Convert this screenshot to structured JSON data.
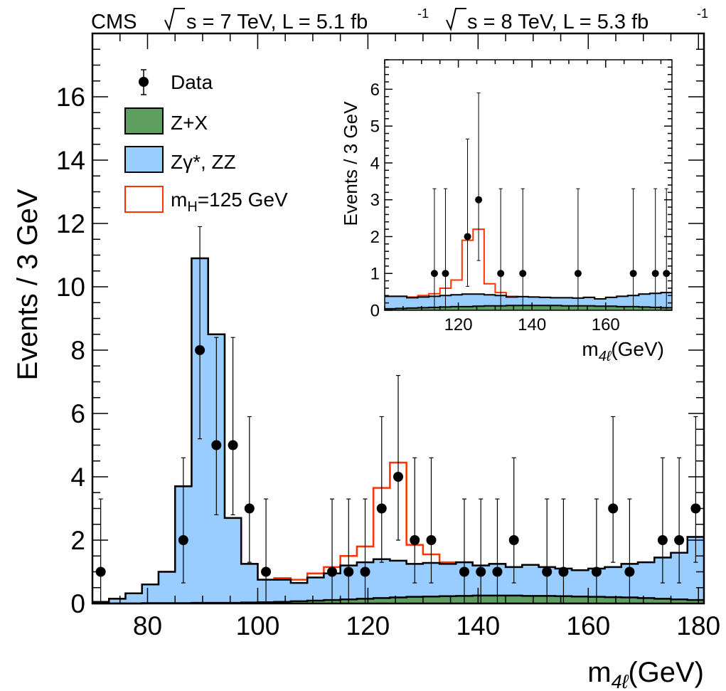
{
  "header": {
    "experiment": "CMS",
    "lumi_7": "s = 7 TeV, L = 5.1 fb",
    "lumi_8": "s = 8 TeV, L = 5.3 fb",
    "sup": "-1"
  },
  "legend": {
    "data": "Data",
    "zx": "Z+X",
    "zz_main": "Zγ*, ZZ",
    "higgs_pre": "m",
    "higgs_sub": "H",
    "higgs_post": "=125 GeV"
  },
  "chart_data": [
    {
      "type": "histogram",
      "xlabel_m": "m",
      "xlabel_sub": "4ℓ",
      "xlabel_unit": "(GeV)",
      "ylabel": "Events / 3 GeV",
      "xlim": [
        70,
        181
      ],
      "ylim": [
        0,
        18
      ],
      "xticks": [
        80,
        100,
        120,
        140,
        160,
        180
      ],
      "yticks": [
        0,
        2,
        4,
        6,
        8,
        10,
        12,
        14,
        16
      ],
      "colors": {
        "zx": "#5e9e5e",
        "zz": "#99ccff",
        "higgs": "#ff3300",
        "data": "#000000"
      },
      "bin_edges": [
        70,
        73,
        76,
        79,
        82,
        85,
        88,
        91,
        94,
        97,
        100,
        103,
        106,
        109,
        112,
        115,
        118,
        121,
        124,
        127,
        130,
        133,
        136,
        139,
        142,
        145,
        148,
        151,
        154,
        157,
        160,
        163,
        166,
        169,
        172,
        175,
        178,
        181
      ],
      "series": [
        {
          "name": "Z+X",
          "values": [
            0.0,
            0.0,
            0.0,
            0.01,
            0.01,
            0.01,
            0.02,
            0.02,
            0.02,
            0.03,
            0.04,
            0.05,
            0.07,
            0.09,
            0.11,
            0.13,
            0.15,
            0.17,
            0.19,
            0.21,
            0.22,
            0.23,
            0.24,
            0.25,
            0.25,
            0.25,
            0.24,
            0.24,
            0.23,
            0.22,
            0.21,
            0.2,
            0.19,
            0.17,
            0.15,
            0.13,
            0.11
          ]
        },
        {
          "name": "Zγ*, ZZ",
          "values": [
            0.05,
            0.15,
            0.32,
            0.6,
            1.0,
            3.7,
            10.9,
            8.5,
            2.7,
            1.25,
            0.75,
            0.75,
            0.65,
            0.82,
            0.95,
            1.2,
            1.3,
            1.4,
            1.35,
            1.25,
            1.28,
            1.25,
            1.3,
            1.2,
            1.25,
            1.15,
            1.22,
            1.15,
            1.1,
            1.05,
            1.1,
            1.15,
            1.25,
            1.3,
            1.45,
            1.6,
            2.1
          ]
        },
        {
          "name": "m_H=125 GeV",
          "values": [
            0.05,
            0.15,
            0.32,
            0.6,
            1.0,
            3.7,
            10.9,
            8.5,
            2.7,
            1.25,
            0.75,
            0.8,
            0.75,
            0.95,
            1.15,
            1.5,
            1.8,
            3.65,
            4.45,
            1.85,
            1.55,
            1.3,
            1.3,
            1.2,
            1.25,
            1.15,
            1.22,
            1.15,
            1.1,
            1.05,
            1.1,
            1.15,
            1.25,
            1.3,
            1.45,
            1.6,
            2.1
          ]
        }
      ],
      "data_points": [
        {
          "x": 71.5,
          "y": 1
        },
        {
          "x": 86.5,
          "y": 2
        },
        {
          "x": 89.5,
          "y": 8
        },
        {
          "x": 92.5,
          "y": 5
        },
        {
          "x": 95.5,
          "y": 5
        },
        {
          "x": 98.5,
          "y": 3
        },
        {
          "x": 101.5,
          "y": 1
        },
        {
          "x": 113.5,
          "y": 1
        },
        {
          "x": 116.5,
          "y": 1
        },
        {
          "x": 119.5,
          "y": 1
        },
        {
          "x": 122.5,
          "y": 3
        },
        {
          "x": 125.5,
          "y": 4
        },
        {
          "x": 128.5,
          "y": 2
        },
        {
          "x": 131.5,
          "y": 2
        },
        {
          "x": 137.5,
          "y": 1
        },
        {
          "x": 140.5,
          "y": 1
        },
        {
          "x": 143.5,
          "y": 1
        },
        {
          "x": 146.5,
          "y": 2
        },
        {
          "x": 152.5,
          "y": 1
        },
        {
          "x": 155.5,
          "y": 1
        },
        {
          "x": 161.5,
          "y": 1
        },
        {
          "x": 164.5,
          "y": 3
        },
        {
          "x": 167.5,
          "y": 1
        },
        {
          "x": 173.5,
          "y": 2
        },
        {
          "x": 176.5,
          "y": 2
        },
        {
          "x": 179.5,
          "y": 3
        }
      ],
      "error_bars": [
        [
          0,
          3.3
        ],
        [
          0.65,
          4.6
        ],
        [
          5.2,
          11.9
        ],
        [
          2.8,
          8.4
        ],
        [
          2.8,
          8.4
        ],
        [
          1.3,
          5.9
        ],
        [
          0,
          3.3
        ],
        [
          0,
          3.3
        ],
        [
          0,
          3.3
        ],
        [
          0,
          3.3
        ],
        [
          1.3,
          5.9
        ],
        [
          2.0,
          7.2
        ],
        [
          0.65,
          4.6
        ],
        [
          0.65,
          4.6
        ],
        [
          0,
          3.3
        ],
        [
          0,
          3.3
        ],
        [
          0,
          3.3
        ],
        [
          0.65,
          4.6
        ],
        [
          0,
          3.3
        ],
        [
          0,
          3.3
        ],
        [
          0,
          3.3
        ],
        [
          1.3,
          5.9
        ],
        [
          0,
          3.3
        ],
        [
          0.65,
          4.6
        ],
        [
          0.65,
          4.6
        ],
        [
          1.3,
          5.9
        ]
      ]
    },
    {
      "type": "histogram",
      "xlabel_m": "m",
      "xlabel_sub": "4ℓ",
      "xlabel_unit": "(GeV)",
      "ylabel": "Events / 3 GeV",
      "xlim": [
        100,
        178
      ],
      "ylim": [
        0,
        6.8
      ],
      "xticks": [
        120,
        140,
        160
      ],
      "yticks": [
        0,
        1,
        2,
        3,
        4,
        5,
        6
      ],
      "bin_edges": [
        100,
        103,
        106,
        109,
        112,
        115,
        118,
        121,
        124,
        127,
        130,
        133,
        136,
        139,
        142,
        145,
        148,
        151,
        154,
        157,
        160,
        163,
        166,
        169,
        172,
        175,
        178
      ],
      "series": [
        {
          "name": "Z+X",
          "values": [
            0.04,
            0.05,
            0.06,
            0.07,
            0.08,
            0.09,
            0.1,
            0.1,
            0.11,
            0.12,
            0.12,
            0.13,
            0.13,
            0.13,
            0.13,
            0.13,
            0.12,
            0.12,
            0.12,
            0.11,
            0.11,
            0.1,
            0.1,
            0.09,
            0.08,
            0.07
          ]
        },
        {
          "name": "Zγ*, ZZ",
          "values": [
            0.38,
            0.38,
            0.34,
            0.36,
            0.38,
            0.4,
            0.42,
            0.44,
            0.44,
            0.42,
            0.4,
            0.36,
            0.37,
            0.36,
            0.35,
            0.34,
            0.34,
            0.33,
            0.35,
            0.31,
            0.35,
            0.38,
            0.4,
            0.44,
            0.46,
            0.48
          ]
        },
        {
          "name": "m_H=125 GeV",
          "values": [
            0.38,
            0.38,
            0.36,
            0.4,
            0.45,
            0.6,
            0.82,
            1.9,
            2.2,
            0.72,
            0.48,
            0.38,
            0.37,
            0.36,
            0.35,
            0.34,
            0.34,
            0.33,
            0.35,
            0.31,
            0.35,
            0.38,
            0.4,
            0.44,
            0.46,
            0.48
          ]
        }
      ],
      "data_points": [
        {
          "x": 113.5,
          "y": 1
        },
        {
          "x": 116.5,
          "y": 1
        },
        {
          "x": 122.5,
          "y": 2
        },
        {
          "x": 125.5,
          "y": 3
        },
        {
          "x": 131.5,
          "y": 1
        },
        {
          "x": 137.5,
          "y": 1
        },
        {
          "x": 152.5,
          "y": 1
        },
        {
          "x": 167.5,
          "y": 1
        },
        {
          "x": 173.5,
          "y": 1
        },
        {
          "x": 176.5,
          "y": 1
        }
      ],
      "error_bars": [
        [
          0,
          3.3
        ],
        [
          0,
          3.3
        ],
        [
          0.65,
          4.65
        ],
        [
          1.35,
          5.9
        ],
        [
          0,
          3.3
        ],
        [
          0,
          3.3
        ],
        [
          0,
          3.3
        ],
        [
          0,
          3.3
        ],
        [
          0,
          3.3
        ],
        [
          0,
          3.3
        ]
      ]
    }
  ]
}
